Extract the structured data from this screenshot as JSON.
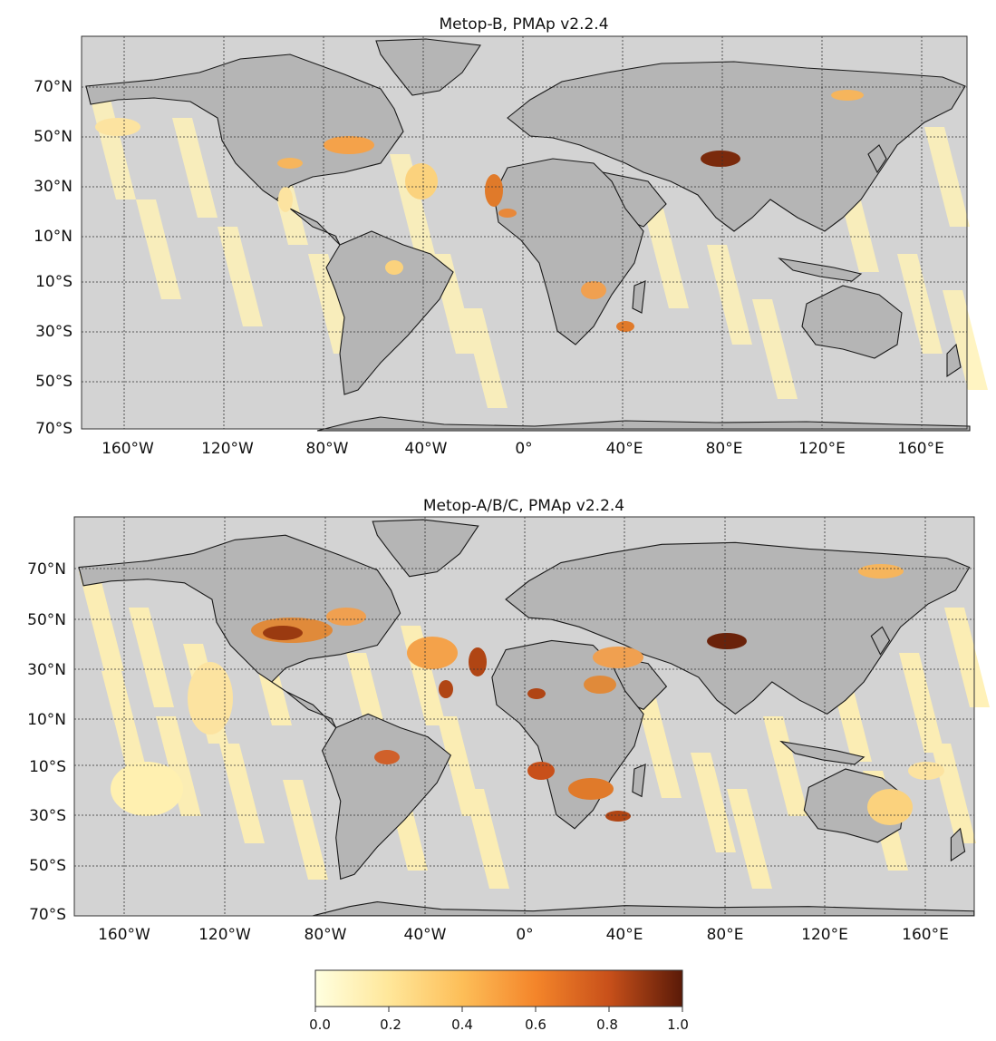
{
  "panels": [
    {
      "title": "Metop-B, PMAp v2.2.4",
      "lat_labels": [
        "70°N",
        "50°N",
        "30°N",
        "10°N",
        "10°S",
        "30°S",
        "50°S",
        "70°S"
      ],
      "lon_labels": [
        "160°W",
        "120°W",
        "80°W",
        "40°W",
        "0°",
        "40°E",
        "80°E",
        "120°E",
        "160°E"
      ]
    },
    {
      "title": "Metop-A/B/C, PMAp v2.2.4",
      "lat_labels": [
        "70°N",
        "50°N",
        "30°N",
        "10°N",
        "10°S",
        "30°S",
        "50°S",
        "70°S"
      ],
      "lon_labels": [
        "160°W",
        "120°W",
        "80°W",
        "40°W",
        "0°",
        "40°E",
        "80°E",
        "120°E",
        "160°E"
      ]
    }
  ],
  "colorbar": {
    "tick_labels": [
      "0.0",
      "0.2",
      "0.4",
      "0.6",
      "0.8",
      "1.0"
    ],
    "colors": [
      "#ffffe0",
      "#ffe79a",
      "#fdbe58",
      "#f4852a",
      "#c8501a",
      "#5a1a08"
    ]
  },
  "colors": {
    "ocean": "#d3d3d3",
    "land": "#b5b5b5",
    "grid": "#333333"
  }
}
